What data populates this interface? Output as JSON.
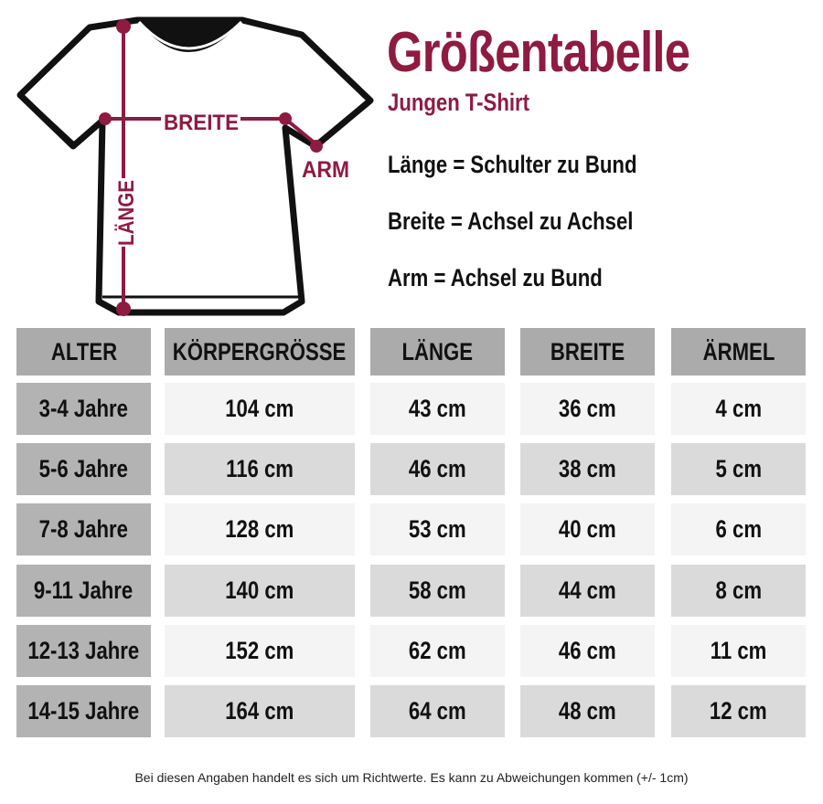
{
  "title": "Größentabelle",
  "subtitle": "Jungen T-Shirt",
  "illustration": {
    "labels": {
      "width": "BREITE",
      "length": "LÄNGE",
      "arm": "ARM"
    },
    "accent_color": "#8e1b40"
  },
  "definitions": [
    "Länge = Schulter zu Bund",
    "Breite = Achsel zu Achsel",
    "Arm = Achsel zu Bund"
  ],
  "table": {
    "headers": [
      "ALTER",
      "KÖRPERGRÖSSE",
      "LÄNGE",
      "BREITE",
      "ÄRMEL"
    ],
    "rows": [
      [
        "3-4 Jahre",
        "104 cm",
        "43 cm",
        "36 cm",
        "4 cm"
      ],
      [
        "5-6 Jahre",
        "116 cm",
        "46 cm",
        "38 cm",
        "5 cm"
      ],
      [
        "7-8 Jahre",
        "128 cm",
        "53 cm",
        "40 cm",
        "6 cm"
      ],
      [
        "9-11 Jahre",
        "140 cm",
        "58 cm",
        "44 cm",
        "8 cm"
      ],
      [
        "12-13 Jahre",
        "152 cm",
        "62 cm",
        "46 cm",
        "11 cm"
      ],
      [
        "14-15 Jahre",
        "164 cm",
        "64 cm",
        "48 cm",
        "12 cm"
      ]
    ]
  },
  "note": "Bei diesen Angaben handelt es sich um Richtwerte. Es kann zu Abweichungen kommen (+/- 1cm)"
}
